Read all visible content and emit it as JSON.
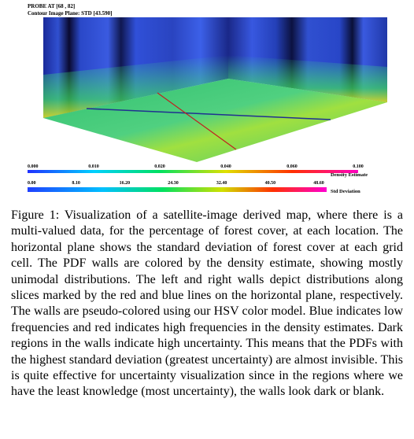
{
  "figure": {
    "probe": "PROBE AT [68 , 82]",
    "plane": "Contour Image Plane: STD [43.590]",
    "colorbars": [
      {
        "name": "Density Estimate",
        "ticks": [
          "0.000",
          "0.010",
          "0.020",
          "0.040",
          "0.060",
          "0.100"
        ]
      },
      {
        "name": "Std Deviation",
        "ticks": [
          "0.00",
          "8.10",
          "16.20",
          "24.30",
          "32.40",
          "40.50",
          "48.60"
        ]
      }
    ]
  },
  "caption": {
    "label": "Figure 1:",
    "text": "Visualization of a satellite-image derived map, where there is a multi-valued data, for the percentage of forest cover, at each location. The horizontal plane shows the standard deviation of forest cover at each grid cell. The PDF walls are colored by the density estimate, showing mostly unimodal distributions. The left and right walls depict distributions along slices marked by the red and blue lines on the horizontal plane, respectively. The walls are pseudo-colored using our HSV color model. Blue indicates low frequencies and red indicates high frequencies in the density estimates. Dark regions in the walls indicate high uncertainty. This means that the PDFs with the highest standard deviation (greatest uncertainty) are almost invisible. This is quite effective for uncertainty visualization since in the regions where we have the least knowledge (most uncertainty), the walls look dark or blank."
  }
}
